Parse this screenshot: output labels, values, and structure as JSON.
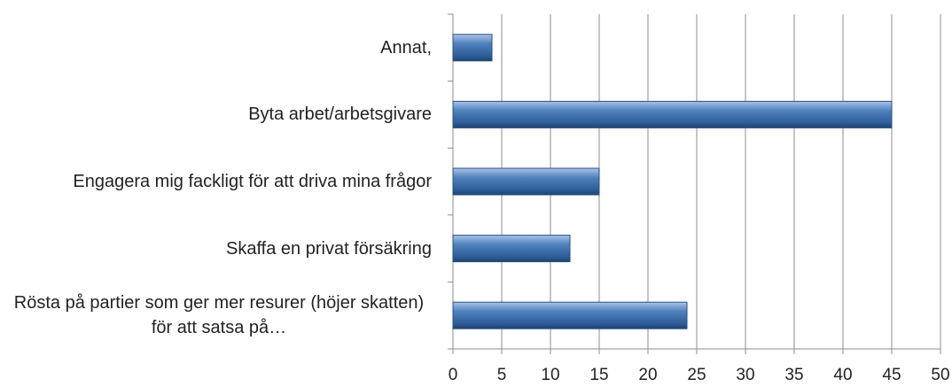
{
  "chart_data": {
    "type": "bar",
    "orientation": "horizontal",
    "categories": [
      "Annat,",
      "Byta arbet/arbetsgivare",
      "Engagera mig fackligt för att driva mina frågor",
      "Skaffa en privat försäkring",
      "Rösta på partier som ger mer resurer (höjer skatten) för att satsa på…"
    ],
    "values": [
      4,
      45,
      15,
      12,
      24
    ],
    "color": "#4f81bd",
    "xlim": [
      0,
      50
    ],
    "xticks": [
      0,
      5,
      10,
      15,
      20,
      25,
      30,
      35,
      40,
      45,
      50
    ],
    "grid": true
  }
}
